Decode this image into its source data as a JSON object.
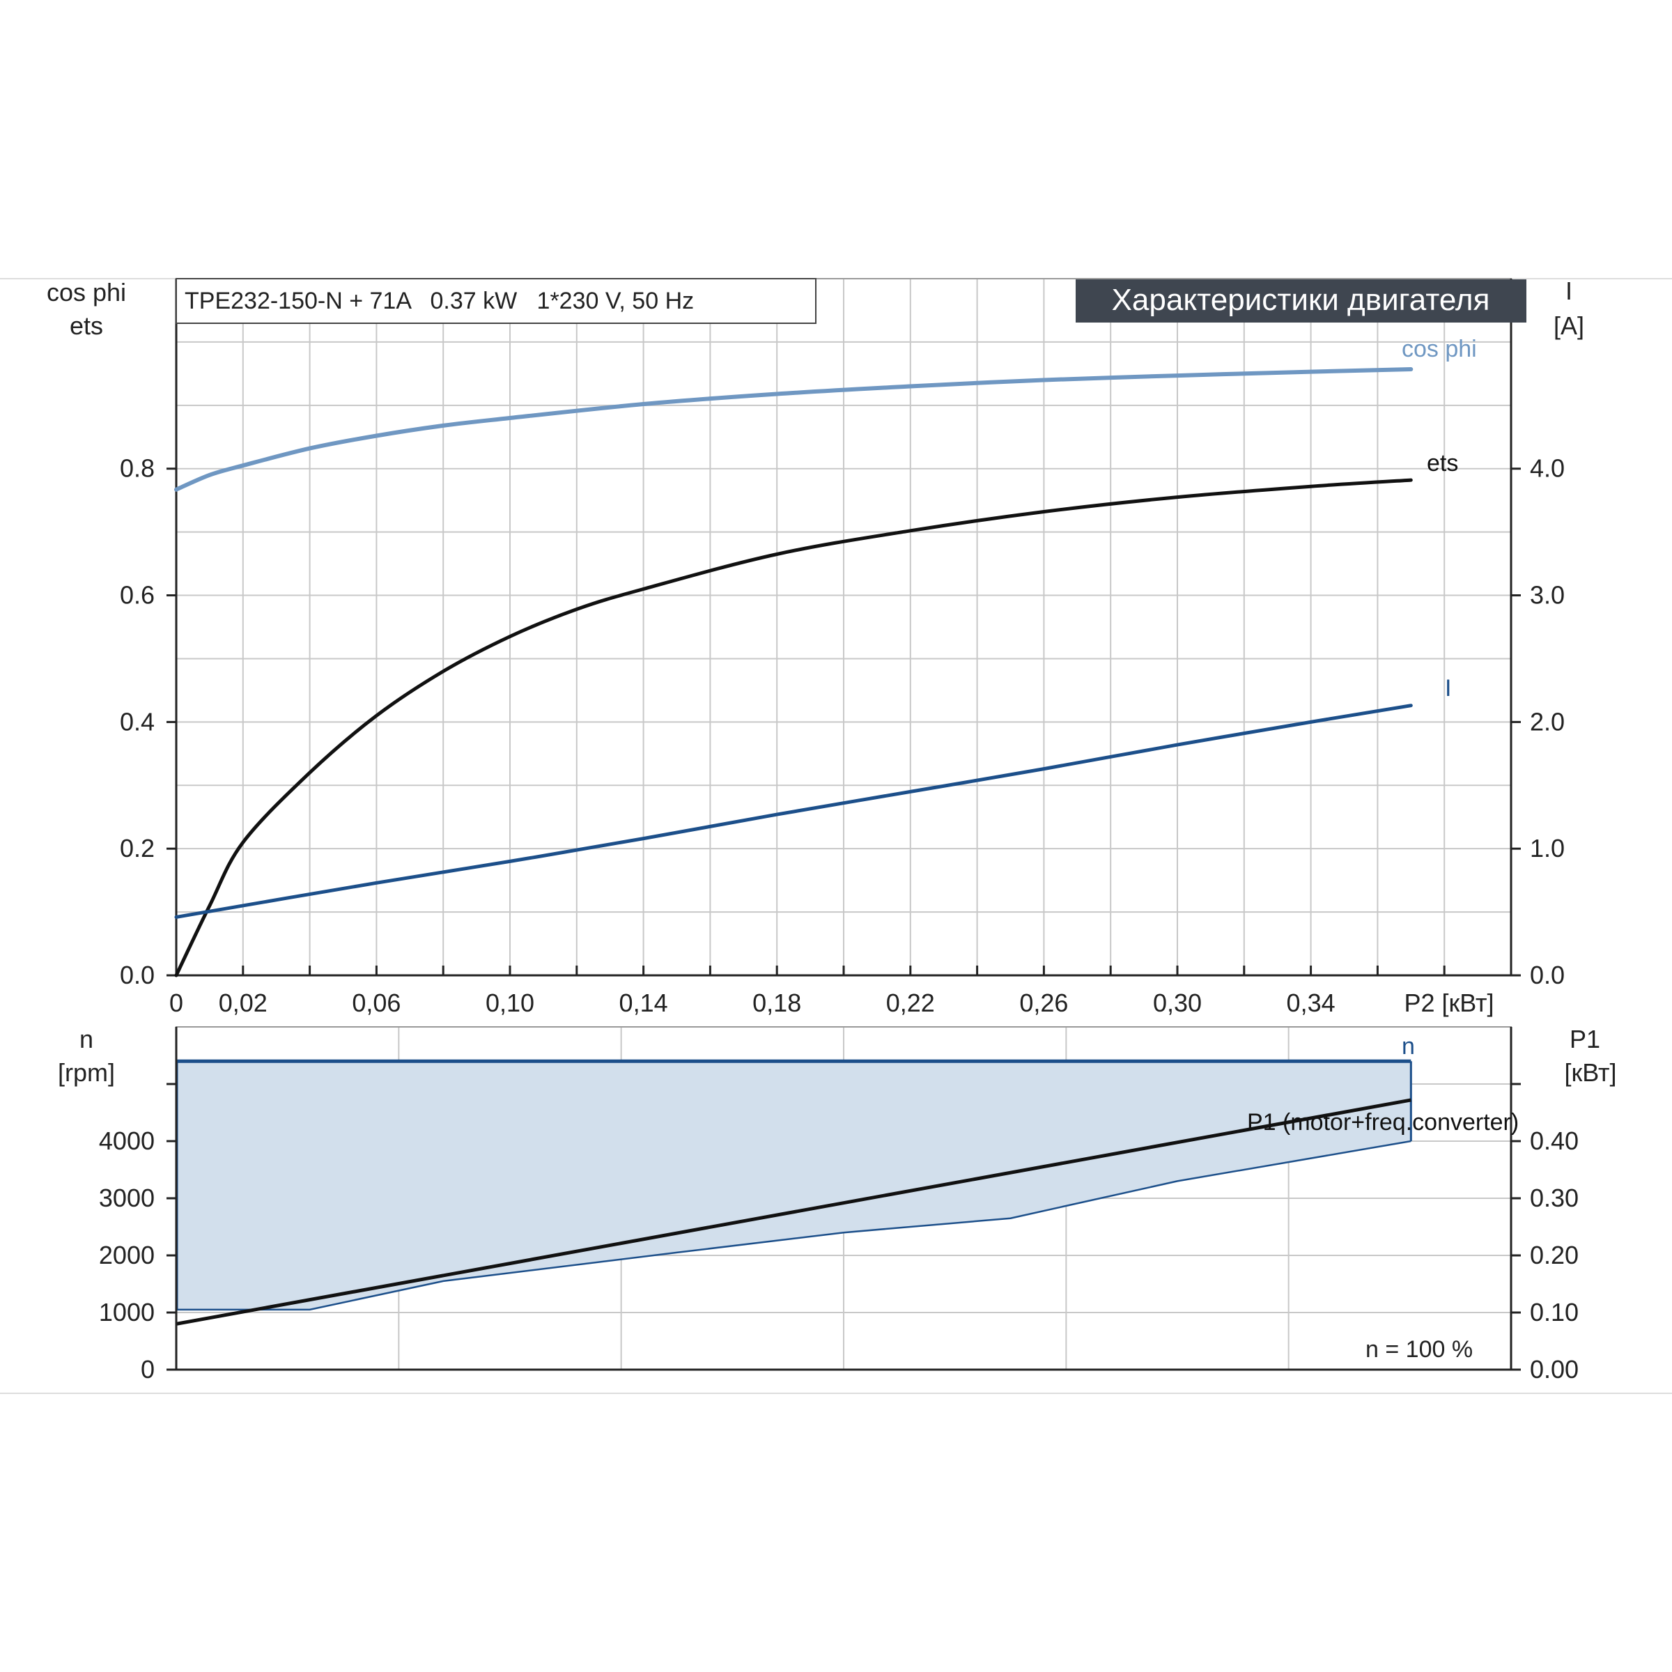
{
  "title_box": "TPE232-150-N + 71A   0.37 kW   1*230 V, 50 Hz",
  "badge": "Характеристики двигателя",
  "colors": {
    "cosphi": "#6f97c2",
    "ets": "#111111",
    "current": "#1c4f8a",
    "speed": "#1c4f8a",
    "p1": "#111111",
    "fill": "#d2dfec",
    "grid": "#c8c8c8",
    "badge_bg": "#3f4650",
    "badge_text": "#ffffff"
  },
  "chart_data": [
    {
      "type": "line",
      "panel": "upper",
      "x_label": "P2 [кВт]",
      "x_ticks": [
        "0",
        "0,02",
        "0,06",
        "0,10",
        "0,14",
        "0,18",
        "0,22",
        "0,26",
        "0,30",
        "0,34"
      ],
      "x_tick_values": [
        0,
        0.02,
        0.06,
        0.1,
        0.14,
        0.18,
        0.22,
        0.26,
        0.3,
        0.34
      ],
      "xlim": [
        0,
        0.4
      ],
      "y_left_label_1": "cos phi",
      "y_left_label_2": "ets",
      "y_left_ticks": [
        "0.0",
        "0.2",
        "0.4",
        "0.6",
        "0.8"
      ],
      "y_left_tick_values": [
        0,
        0.2,
        0.4,
        0.6,
        0.8
      ],
      "y_left_lim": [
        0,
        1.1
      ],
      "y_right_label_1": "I",
      "y_right_label_2": "[A]",
      "y_right_ticks": [
        "0.0",
        "1.0",
        "2.0",
        "3.0",
        "4.0"
      ],
      "y_right_tick_values": [
        0,
        1,
        2,
        3,
        4
      ],
      "y_right_lim": [
        0,
        5.5
      ],
      "series": [
        {
          "name": "cos phi",
          "axis": "left",
          "x": [
            0,
            0.01,
            0.02,
            0.04,
            0.06,
            0.08,
            0.1,
            0.14,
            0.18,
            0.22,
            0.26,
            0.3,
            0.34,
            0.37
          ],
          "y": [
            0.767,
            0.79,
            0.805,
            0.832,
            0.852,
            0.868,
            0.88,
            0.902,
            0.918,
            0.93,
            0.94,
            0.947,
            0.953,
            0.957
          ]
        },
        {
          "name": "ets",
          "axis": "left",
          "x": [
            0,
            0.01,
            0.02,
            0.04,
            0.06,
            0.08,
            0.1,
            0.12,
            0.14,
            0.18,
            0.22,
            0.26,
            0.3,
            0.34,
            0.37
          ],
          "y": [
            0,
            0.11,
            0.21,
            0.32,
            0.41,
            0.48,
            0.535,
            0.578,
            0.61,
            0.665,
            0.702,
            0.732,
            0.755,
            0.772,
            0.782
          ]
        },
        {
          "name": "I",
          "axis": "right",
          "x": [
            0,
            0.06,
            0.1,
            0.14,
            0.18,
            0.22,
            0.26,
            0.3,
            0.34,
            0.37
          ],
          "y": [
            0.46,
            0.73,
            0.9,
            1.08,
            1.27,
            1.45,
            1.63,
            1.82,
            2.0,
            2.13
          ]
        }
      ]
    },
    {
      "type": "area",
      "panel": "lower",
      "xlim": [
        0,
        0.4
      ],
      "y_left_label_1": "n",
      "y_left_label_2": "[rpm]",
      "y_left_ticks": [
        "0",
        "1000",
        "2000",
        "3000",
        "4000"
      ],
      "y_left_tick_values": [
        0,
        1000,
        2000,
        3000,
        4000
      ],
      "y_left_lim": [
        0,
        6000
      ],
      "y_right_label_1": "P1",
      "y_right_label_2": "[кВт]",
      "y_right_ticks": [
        "0.00",
        "0.10",
        "0.20",
        "0.30",
        "0.40"
      ],
      "y_right_tick_values": [
        0,
        0.1,
        0.2,
        0.3,
        0.4
      ],
      "y_right_lim": [
        0,
        0.6
      ],
      "annotation": "n = 100 %",
      "series": [
        {
          "name": "n",
          "axis": "left",
          "x": [
            0,
            0.37
          ],
          "y": [
            5400,
            5400
          ]
        },
        {
          "name": "P1 (motor+freq.converter)",
          "axis": "right",
          "x": [
            0,
            0.37
          ],
          "y": [
            0.08,
            0.472
          ]
        },
        {
          "name": "lower boundary",
          "axis": "left",
          "x": [
            0,
            0.04,
            0.08,
            0.15,
            0.2,
            0.25,
            0.3,
            0.37
          ],
          "y": [
            1050,
            1050,
            1550,
            2050,
            2400,
            2650,
            3300,
            4000
          ]
        }
      ]
    }
  ]
}
